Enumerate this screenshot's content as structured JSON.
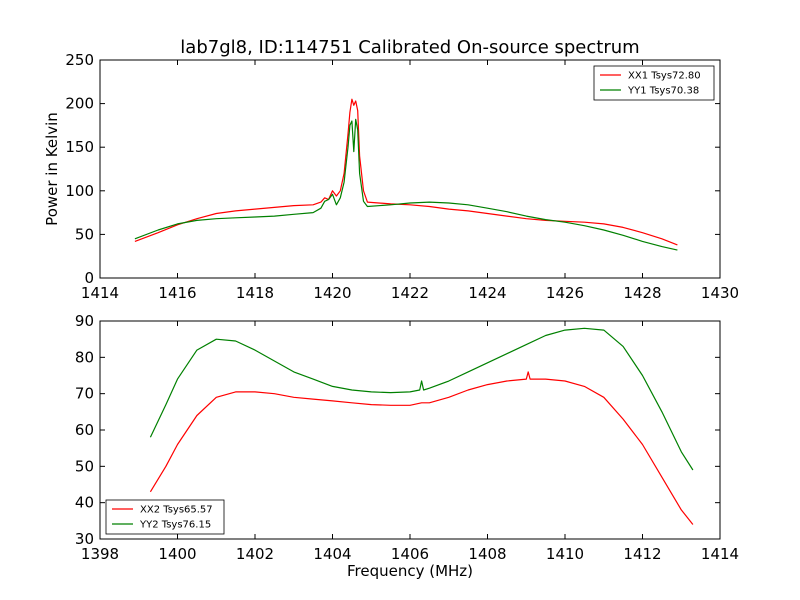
{
  "figure": {
    "title": "lab7gl8, ID:114751 Calibrated On-source spectrum",
    "xlabel": "Frequency (MHz)",
    "colors": {
      "xx": "#ff0000",
      "yy": "#008000"
    }
  },
  "chart_data": [
    {
      "type": "line",
      "title": "lab7gl8, ID:114751 Calibrated On-source spectrum",
      "xlabel": "",
      "ylabel": "Power in Kelvin",
      "xlim": [
        1414,
        1430
      ],
      "ylim": [
        0,
        250
      ],
      "xticks": [
        "1414",
        "1416",
        "1418",
        "1420",
        "1422",
        "1424",
        "1426",
        "1428",
        "1430"
      ],
      "yticks": [
        "0",
        "50",
        "100",
        "150",
        "200",
        "250"
      ],
      "legend": "top-right",
      "grid": false,
      "series": [
        {
          "name": "XX1 Tsys72.80",
          "color": "#ff0000",
          "x": [
            1414.9,
            1415.5,
            1416.0,
            1416.5,
            1417.0,
            1417.5,
            1418.0,
            1418.5,
            1419.0,
            1419.5,
            1419.7,
            1419.8,
            1419.9,
            1420.0,
            1420.1,
            1420.2,
            1420.3,
            1420.4,
            1420.45,
            1420.5,
            1420.55,
            1420.6,
            1420.65,
            1420.7,
            1420.8,
            1420.9,
            1421.5,
            1422.0,
            1422.5,
            1423.0,
            1423.5,
            1424.0,
            1424.5,
            1425.0,
            1425.5,
            1426.0,
            1426.5,
            1427.0,
            1427.5,
            1428.0,
            1428.5,
            1428.9
          ],
          "y": [
            42,
            52,
            61,
            68,
            74,
            77,
            79,
            81,
            83,
            84,
            87,
            92,
            90,
            100,
            94,
            100,
            120,
            165,
            190,
            205,
            198,
            203,
            192,
            140,
            100,
            87,
            85,
            84,
            82,
            79,
            77,
            74,
            71,
            68,
            66,
            65,
            64,
            62,
            58,
            52,
            45,
            38
          ]
        },
        {
          "name": "YY1 Tsys70.38",
          "color": "#008000",
          "x": [
            1414.9,
            1415.5,
            1416.0,
            1416.5,
            1417.0,
            1417.5,
            1418.0,
            1418.5,
            1419.0,
            1419.5,
            1419.7,
            1419.8,
            1419.9,
            1420.0,
            1420.1,
            1420.2,
            1420.3,
            1420.4,
            1420.45,
            1420.5,
            1420.55,
            1420.6,
            1420.65,
            1420.7,
            1420.8,
            1420.9,
            1421.5,
            1422.0,
            1422.5,
            1423.0,
            1423.5,
            1424.0,
            1424.5,
            1425.0,
            1425.5,
            1426.0,
            1426.5,
            1427.0,
            1427.5,
            1428.0,
            1428.5,
            1428.9
          ],
          "y": [
            45,
            55,
            62,
            66,
            68,
            69,
            70,
            71,
            73,
            75,
            80,
            88,
            90,
            96,
            84,
            92,
            110,
            150,
            175,
            180,
            145,
            182,
            170,
            120,
            88,
            82,
            84,
            86,
            87,
            86,
            84,
            80,
            76,
            71,
            67,
            64,
            60,
            55,
            49,
            42,
            36,
            32
          ]
        }
      ]
    },
    {
      "type": "line",
      "title": "",
      "xlabel": "Frequency (MHz)",
      "ylabel": "",
      "xlim": [
        1398,
        1414
      ],
      "ylim": [
        30,
        90
      ],
      "xticks": [
        "1398",
        "1400",
        "1402",
        "1404",
        "1406",
        "1408",
        "1410",
        "1412",
        "1414"
      ],
      "yticks": [
        "30",
        "40",
        "50",
        "60",
        "70",
        "80",
        "90"
      ],
      "legend": "bottom-left",
      "grid": false,
      "series": [
        {
          "name": "XX2 Tsys65.57",
          "color": "#ff0000",
          "x": [
            1399.3,
            1399.7,
            1400.0,
            1400.5,
            1401.0,
            1401.5,
            1402.0,
            1402.5,
            1403.0,
            1403.5,
            1404.0,
            1404.5,
            1405.0,
            1405.5,
            1406.0,
            1406.3,
            1406.5,
            1407.0,
            1407.5,
            1408.0,
            1408.5,
            1409.0,
            1409.05,
            1409.1,
            1409.5,
            1410.0,
            1410.5,
            1411.0,
            1411.5,
            1412.0,
            1412.5,
            1413.0,
            1413.3
          ],
          "y": [
            43,
            50,
            56,
            64,
            69,
            70.5,
            70.5,
            70,
            69,
            68.5,
            68,
            67.5,
            67,
            66.8,
            66.8,
            67.5,
            67.5,
            69,
            71,
            72.5,
            73.5,
            74,
            76,
            74,
            74,
            73.5,
            72,
            69,
            63,
            56,
            47,
            38,
            34
          ]
        },
        {
          "name": "YY2 Tsys76.15",
          "color": "#008000",
          "x": [
            1399.3,
            1399.7,
            1400.0,
            1400.5,
            1401.0,
            1401.5,
            1402.0,
            1402.5,
            1403.0,
            1403.5,
            1404.0,
            1404.5,
            1405.0,
            1405.5,
            1406.0,
            1406.25,
            1406.3,
            1406.35,
            1406.5,
            1407.0,
            1407.5,
            1408.0,
            1408.5,
            1409.0,
            1409.5,
            1410.0,
            1410.5,
            1411.0,
            1411.5,
            1412.0,
            1412.5,
            1413.0,
            1413.3
          ],
          "y": [
            58,
            67,
            74,
            82,
            85,
            84.5,
            82,
            79,
            76,
            74,
            72,
            71,
            70.5,
            70.3,
            70.5,
            71,
            73.5,
            71,
            71.5,
            73.5,
            76,
            78.5,
            81,
            83.5,
            86,
            87.5,
            88,
            87.5,
            83,
            75,
            65,
            54,
            49
          ]
        }
      ]
    }
  ]
}
